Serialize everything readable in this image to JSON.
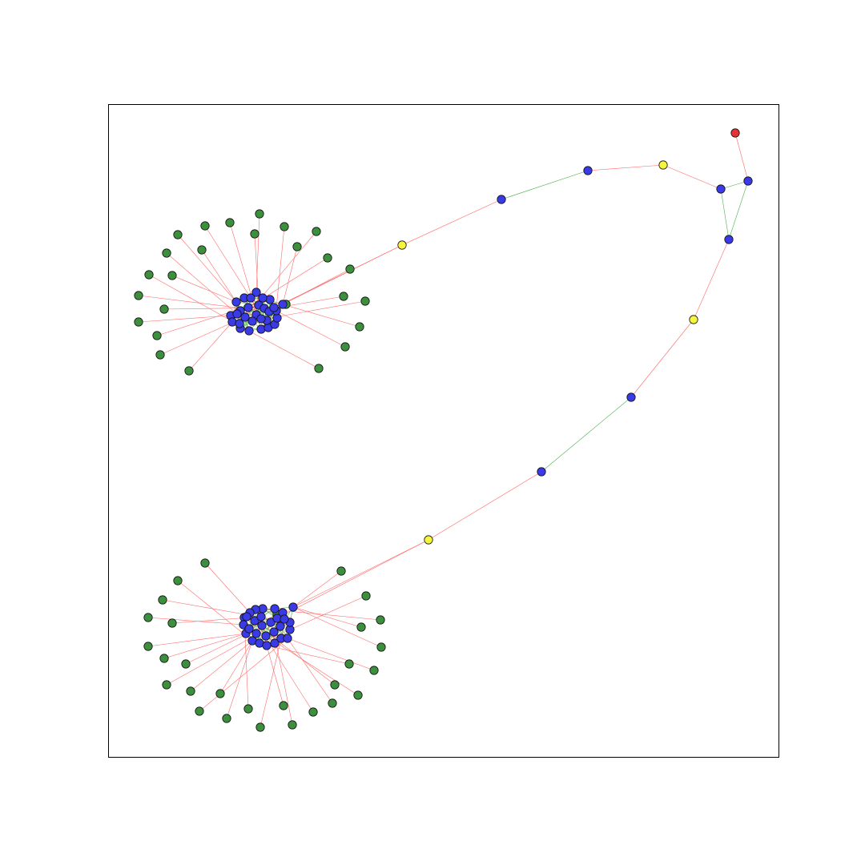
{
  "colors": {
    "node_blue": "#3a3ae6",
    "node_green": "#3c8f3c",
    "node_yellow": "#f5f53c",
    "node_red": "#e63232",
    "edge_red": "#ff6b6b",
    "edge_green": "#4caf50"
  },
  "graph": {
    "node_types": [
      "blue",
      "green",
      "yellow",
      "red"
    ],
    "edge_types": [
      "red",
      "green"
    ],
    "clusters": [
      {
        "name": "upper-cluster",
        "hub_blue_nodes": 29,
        "leaf_green_nodes": 26,
        "hub_internal_edge_color": "green",
        "leaf_edge_color": "red"
      },
      {
        "name": "lower-cluster",
        "hub_blue_nodes": 29,
        "leaf_green_nodes": 29,
        "hub_internal_edge_color": "green",
        "leaf_edge_color": "red"
      }
    ],
    "bridge_path": [
      {
        "type": "yellow",
        "edge_to_next": "red"
      },
      {
        "type": "blue",
        "edge_to_next": "green"
      },
      {
        "type": "blue",
        "edge_to_next": "red"
      },
      {
        "type": "yellow",
        "edge_to_next": "red"
      },
      {
        "type": "blue",
        "edge_to_next": "green"
      },
      {
        "type": "blue",
        "edge_to_next": "red"
      },
      {
        "type": "yellow",
        "edge_to_next": "red"
      },
      {
        "type": "blue",
        "edge_to_next": "green"
      },
      {
        "type": "blue",
        "edge_to_next": "red"
      },
      {
        "type": "yellow",
        "edge_to_next": null
      }
    ],
    "triangle": {
      "nodes": [
        "blue",
        "blue",
        "blue"
      ],
      "edge_color": "green"
    },
    "pendant": {
      "type": "red",
      "edge_color": "red"
    }
  }
}
